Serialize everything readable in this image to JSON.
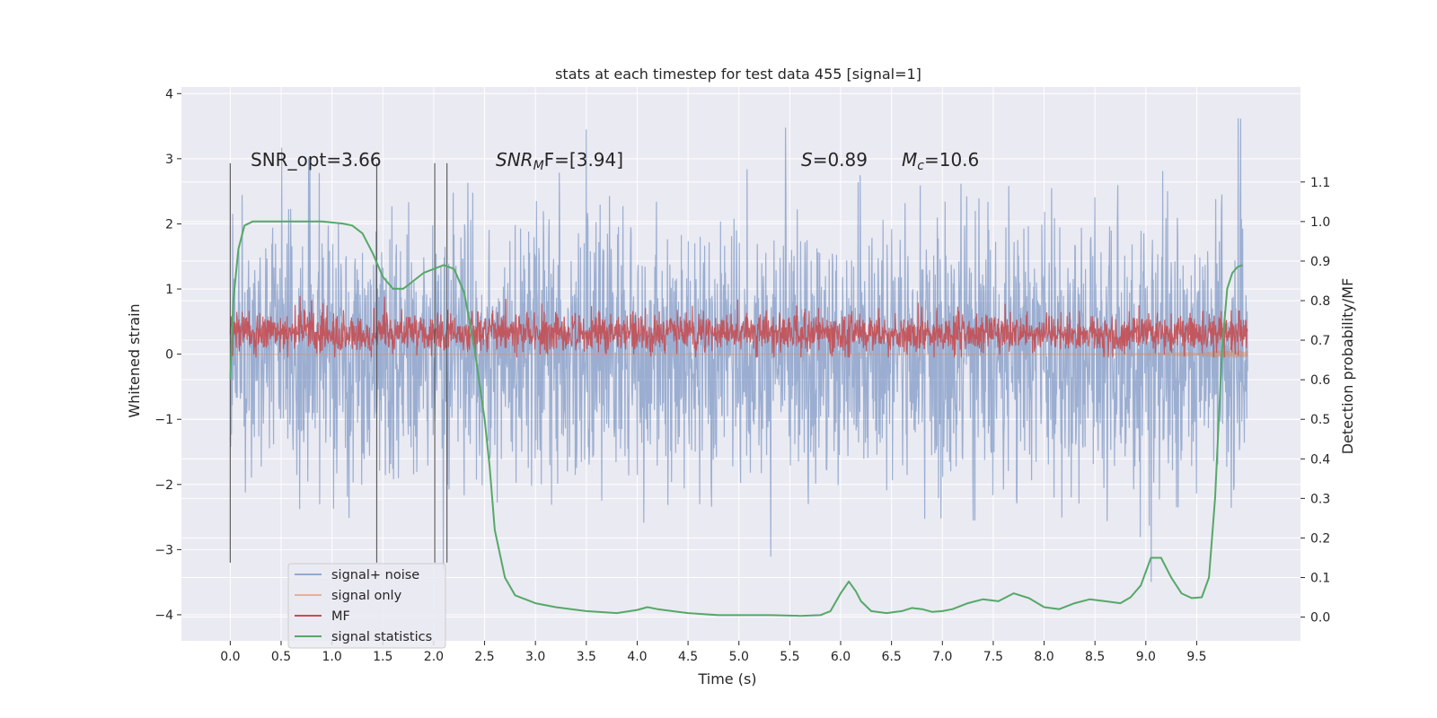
{
  "chart_data": {
    "type": "line",
    "title": "stats at each timestep for test data 455 [signal=1]",
    "xlabel": "Time (s)",
    "ylabel": "Whitened strain",
    "y2label": "Detection probability/MF",
    "xlim": [
      -0.48,
      10.52
    ],
    "ylim": [
      -4.4,
      4.1
    ],
    "y2lim": [
      -0.06,
      1.34
    ],
    "x_ticks": [
      0.0,
      0.5,
      1.0,
      1.5,
      2.0,
      2.5,
      3.0,
      3.5,
      4.0,
      4.5,
      5.0,
      5.5,
      6.0,
      6.5,
      7.0,
      7.5,
      8.0,
      8.5,
      9.0,
      9.5
    ],
    "x_tick_labels": [
      "0.0",
      "0.5",
      "1.0",
      "1.5",
      "2.0",
      "2.5",
      "3.0",
      "3.5",
      "4.0",
      "4.5",
      "5.0",
      "5.5",
      "6.0",
      "6.5",
      "7.0",
      "7.5",
      "8.0",
      "8.5",
      "9.0",
      "9.5"
    ],
    "y_ticks": [
      -4,
      -3,
      -2,
      -1,
      0,
      1,
      2,
      3,
      4
    ],
    "y_tick_labels": [
      "−4",
      "−3",
      "−2",
      "−1",
      "0",
      "1",
      "2",
      "3",
      "4"
    ],
    "y2_ticks": [
      0.0,
      0.1,
      0.2,
      0.3,
      0.4,
      0.5,
      0.6,
      0.7,
      0.8,
      0.9,
      1.0,
      1.1
    ],
    "y2_tick_labels": [
      "0.0",
      "0.1",
      "0.2",
      "0.3",
      "0.4",
      "0.5",
      "0.6",
      "0.7",
      "0.8",
      "0.9",
      "1.0",
      "1.1"
    ],
    "grid": true,
    "legend_position": "lower-left",
    "annotations": {
      "snr_opt": "SNR_opt=3.66",
      "snr_mf_main": "SNR",
      "snr_mf_sub": "M",
      "snr_mf_rest": "F=[3.94]",
      "s_main": "S",
      "s_rest": "=0.89",
      "mc_main": "M",
      "mc_sub": "c",
      "mc_rest": "=10.6"
    },
    "vertical_markers": [
      0.0,
      1.44,
      2.01,
      2.13
    ],
    "series": [
      {
        "name": "signal+ noise",
        "color": "#4c72b0",
        "axis": "left",
        "kind": "noise",
        "t_range": [
          0.0,
          10.0
        ],
        "amplitude": 1.0
      },
      {
        "name": "signal only",
        "color": "#dd8452",
        "axis": "left",
        "kind": "chirp",
        "t_range": [
          0.0,
          10.0
        ],
        "peak": -0.45,
        "merger_time": 9.7
      },
      {
        "name": "MF",
        "color": "#c44e52",
        "axis": "left",
        "kind": "noise",
        "t_range": [
          0.0,
          10.0
        ],
        "baseline": 0.32,
        "amplitude": 0.15
      },
      {
        "name": "signal statistics",
        "color": "#55a868",
        "axis": "right",
        "kind": "curve",
        "x": [
          0.0,
          0.03,
          0.08,
          0.14,
          0.22,
          0.35,
          0.5,
          0.7,
          0.9,
          1.1,
          1.2,
          1.3,
          1.4,
          1.5,
          1.6,
          1.7,
          1.8,
          1.9,
          2.0,
          2.1,
          2.2,
          2.3,
          2.4,
          2.5,
          2.55,
          2.6,
          2.7,
          2.8,
          3.0,
          3.2,
          3.5,
          3.8,
          4.0,
          4.1,
          4.2,
          4.5,
          4.8,
          5.0,
          5.3,
          5.6,
          5.8,
          5.9,
          6.0,
          6.08,
          6.15,
          6.2,
          6.3,
          6.45,
          6.6,
          6.7,
          6.8,
          6.9,
          7.0,
          7.1,
          7.25,
          7.4,
          7.55,
          7.7,
          7.85,
          8.0,
          8.15,
          8.3,
          8.45,
          8.6,
          8.75,
          8.85,
          8.95,
          9.05,
          9.15,
          9.25,
          9.35,
          9.45,
          9.55,
          9.62,
          9.68,
          9.75,
          9.8,
          9.85,
          9.9,
          9.95
        ],
        "y": [
          0.6,
          0.8,
          0.93,
          0.99,
          1.0,
          1.0,
          1.0,
          1.0,
          1.0,
          0.995,
          0.99,
          0.97,
          0.92,
          0.86,
          0.83,
          0.83,
          0.85,
          0.87,
          0.88,
          0.89,
          0.88,
          0.82,
          0.68,
          0.5,
          0.38,
          0.22,
          0.1,
          0.055,
          0.035,
          0.025,
          0.015,
          0.01,
          0.018,
          0.025,
          0.02,
          0.01,
          0.005,
          0.005,
          0.005,
          0.003,
          0.005,
          0.015,
          0.06,
          0.09,
          0.065,
          0.04,
          0.015,
          0.01,
          0.015,
          0.023,
          0.02,
          0.013,
          0.015,
          0.02,
          0.035,
          0.045,
          0.04,
          0.06,
          0.048,
          0.025,
          0.02,
          0.035,
          0.045,
          0.04,
          0.035,
          0.05,
          0.08,
          0.15,
          0.15,
          0.1,
          0.06,
          0.048,
          0.05,
          0.1,
          0.3,
          0.68,
          0.83,
          0.87,
          0.885,
          0.89
        ]
      }
    ]
  }
}
